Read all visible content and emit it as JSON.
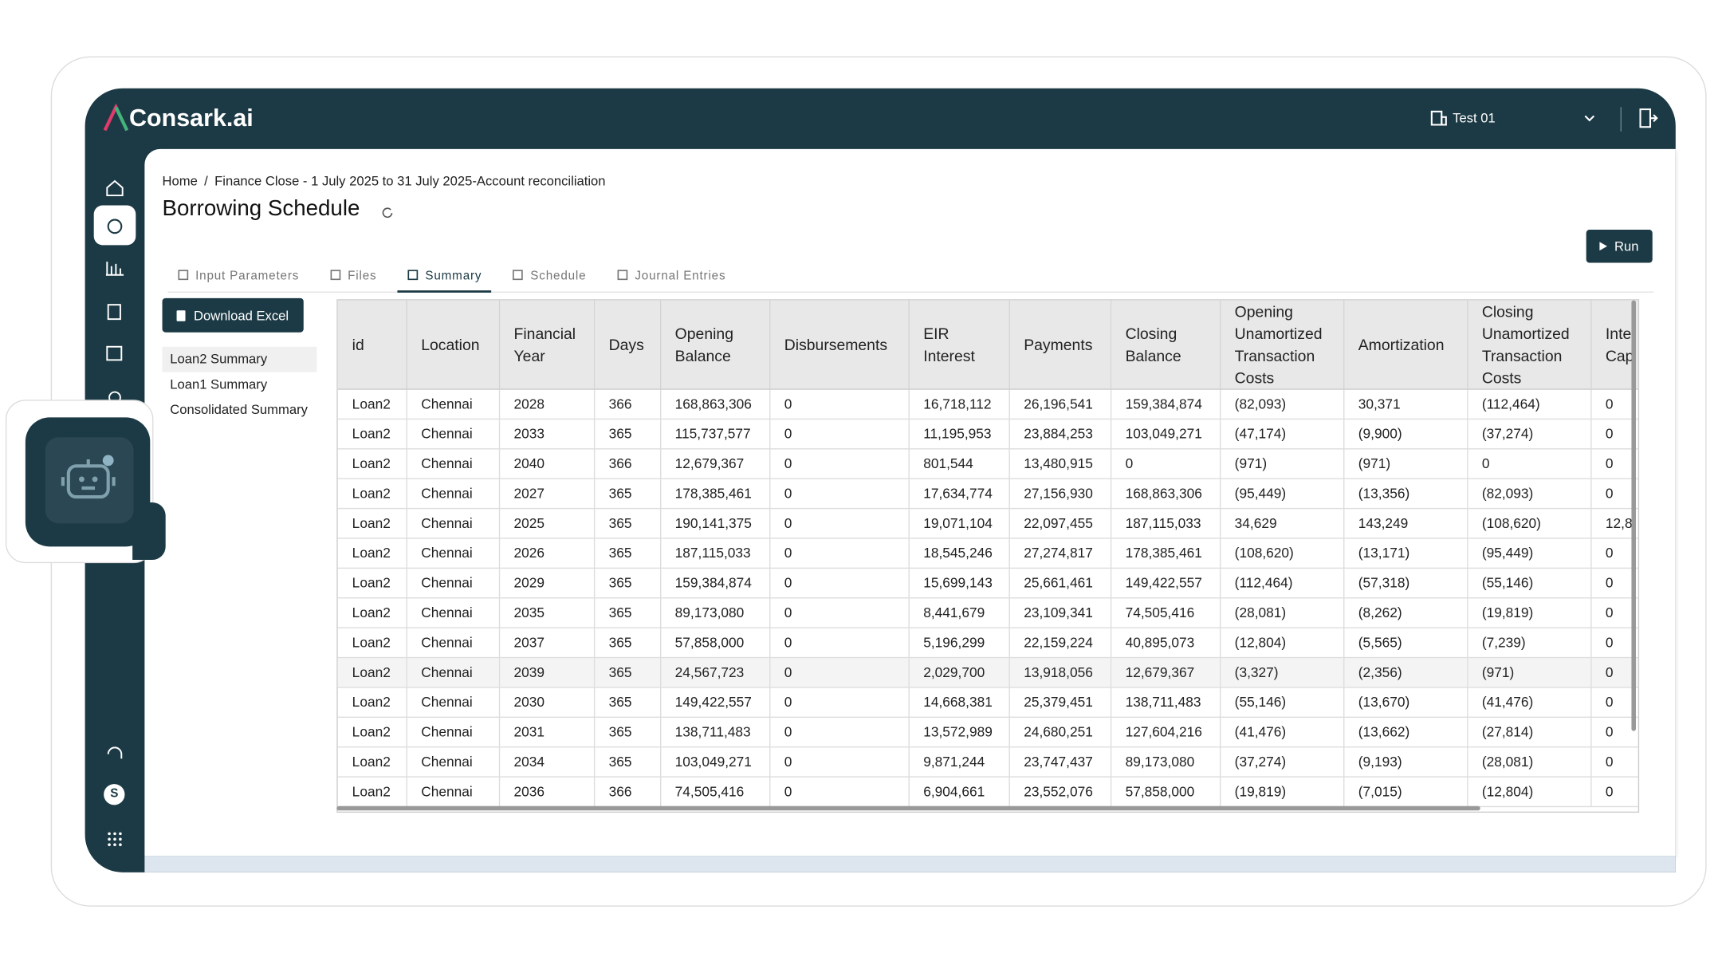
{
  "header": {
    "brand": "Consark.ai",
    "organization": "Test 01"
  },
  "sidebar": {
    "avatar": "S"
  },
  "breadcrumb": {
    "items": [
      "Home",
      "Finance Close - 1 July 2025 to 31 July 2025-Account reconciliation"
    ],
    "separator": "/"
  },
  "page": {
    "title": "Borrowing Schedule",
    "run_button": "Run",
    "download_button": "Download Excel"
  },
  "tabs": {
    "items": [
      "Input Parameters",
      "Files",
      "Summary",
      "Schedule",
      "Journal Entries"
    ],
    "active": 2
  },
  "summary_list": {
    "items": [
      "Loan2 Summary",
      "Loan1 Summary",
      "Consolidated Summary"
    ],
    "selected": 0
  },
  "table": {
    "headers": [
      "id",
      "Location",
      "Financial Year",
      "Days",
      "Opening Balance",
      "Disbursements",
      "EIR Interest",
      "Payments",
      "Closing Balance",
      "Opening Unamortized Transaction Costs",
      "Amortization",
      "Closing Unamortized Transaction Costs",
      "Inte Cap"
    ],
    "rows": [
      [
        "Loan2",
        "Chennai",
        "2028",
        "366",
        "168,863,306",
        "0",
        "16,718,112",
        "26,196,541",
        "159,384,874",
        "(82,093)",
        "30,371",
        "(112,464)",
        "0"
      ],
      [
        "Loan2",
        "Chennai",
        "2033",
        "365",
        "115,737,577",
        "0",
        "11,195,953",
        "23,884,253",
        "103,049,271",
        "(47,174)",
        "(9,900)",
        "(37,274)",
        "0"
      ],
      [
        "Loan2",
        "Chennai",
        "2040",
        "366",
        "12,679,367",
        "0",
        "801,544",
        "13,480,915",
        "0",
        "(971)",
        "(971)",
        "0",
        "0"
      ],
      [
        "Loan2",
        "Chennai",
        "2027",
        "365",
        "178,385,461",
        "0",
        "17,634,774",
        "27,156,930",
        "168,863,306",
        "(95,449)",
        "(13,356)",
        "(82,093)",
        "0"
      ],
      [
        "Loan2",
        "Chennai",
        "2025",
        "365",
        "190,141,375",
        "0",
        "19,071,104",
        "22,097,455",
        "187,115,033",
        "34,629",
        "143,249",
        "(108,620)",
        "12,8"
      ],
      [
        "Loan2",
        "Chennai",
        "2026",
        "365",
        "187,115,033",
        "0",
        "18,545,246",
        "27,274,817",
        "178,385,461",
        "(108,620)",
        "(13,171)",
        "(95,449)",
        "0"
      ],
      [
        "Loan2",
        "Chennai",
        "2029",
        "365",
        "159,384,874",
        "0",
        "15,699,143",
        "25,661,461",
        "149,422,557",
        "(112,464)",
        "(57,318)",
        "(55,146)",
        "0"
      ],
      [
        "Loan2",
        "Chennai",
        "2035",
        "365",
        "89,173,080",
        "0",
        "8,441,679",
        "23,109,341",
        "74,505,416",
        "(28,081)",
        "(8,262)",
        "(19,819)",
        "0"
      ],
      [
        "Loan2",
        "Chennai",
        "2037",
        "365",
        "57,858,000",
        "0",
        "5,196,299",
        "22,159,224",
        "40,895,073",
        "(12,804)",
        "(5,565)",
        "(7,239)",
        "0"
      ],
      [
        "Loan2",
        "Chennai",
        "2039",
        "365",
        "24,567,723",
        "0",
        "2,029,700",
        "13,918,056",
        "12,679,367",
        "(3,327)",
        "(2,356)",
        "(971)",
        "0"
      ],
      [
        "Loan2",
        "Chennai",
        "2030",
        "365",
        "149,422,557",
        "0",
        "14,668,381",
        "25,379,451",
        "138,711,483",
        "(55,146)",
        "(13,670)",
        "(41,476)",
        "0"
      ],
      [
        "Loan2",
        "Chennai",
        "2031",
        "365",
        "138,711,483",
        "0",
        "13,572,989",
        "24,680,251",
        "127,604,216",
        "(41,476)",
        "(13,662)",
        "(27,814)",
        "0"
      ],
      [
        "Loan2",
        "Chennai",
        "2034",
        "365",
        "103,049,271",
        "0",
        "9,871,244",
        "23,747,437",
        "89,173,080",
        "(37,274)",
        "(9,193)",
        "(28,081)",
        "0"
      ],
      [
        "Loan2",
        "Chennai",
        "2036",
        "366",
        "74,505,416",
        "0",
        "6,904,661",
        "23,552,076",
        "57,858,000",
        "(19,819)",
        "(7,015)",
        "(12,804)",
        "0"
      ]
    ]
  }
}
